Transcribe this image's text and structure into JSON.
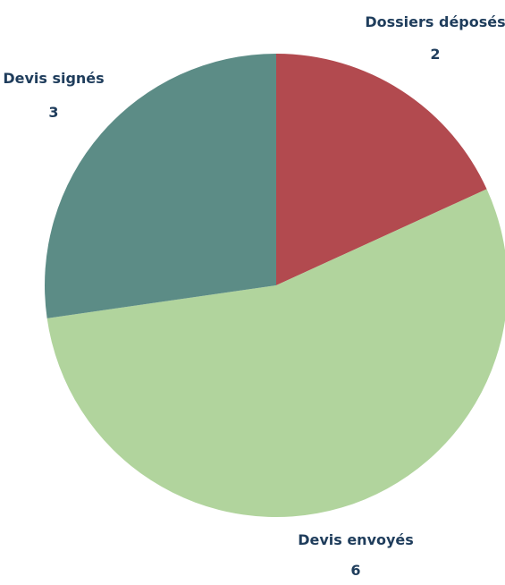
{
  "chart_data": {
    "type": "pie",
    "title": "",
    "categories": [
      "Dossiers déposés",
      "Devis envoyés",
      "Devis signés"
    ],
    "values": [
      2,
      6,
      3
    ],
    "colors": [
      "#b24a4f",
      "#b1d49d",
      "#5c8c86"
    ],
    "value_labels": [
      "2",
      "6",
      "3"
    ],
    "label_color": "#1f3d5c",
    "start": "12 o'clock",
    "direction": "clockwise",
    "legend": "none (category and value labels placed beside slices)"
  }
}
